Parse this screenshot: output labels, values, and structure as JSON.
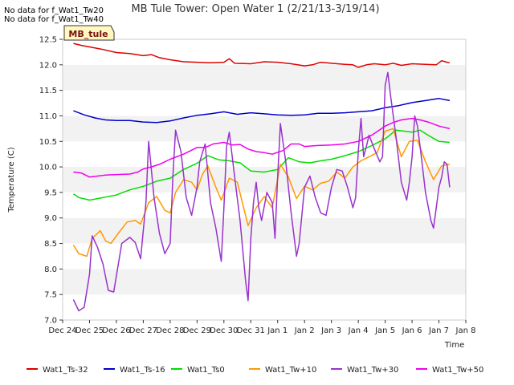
{
  "notes": [
    "No data for f_Wat1_Tw20",
    "No data for f_Wat1_Tw40"
  ],
  "site_label": "MB_tule",
  "chart_data": {
    "type": "line",
    "title": "MB Tule Tower: Open Water 1 (2/21/13-3/19/14)",
    "xlabel": "Time",
    "ylabel": "Temperature (C)",
    "ylim": [
      7.0,
      12.5
    ],
    "xlim": [
      0,
      15
    ],
    "x_ticks": [
      {
        "x": 0,
        "label": "Dec 24"
      },
      {
        "x": 1,
        "label": "Dec 25"
      },
      {
        "x": 2,
        "label": "Dec 26"
      },
      {
        "x": 3,
        "label": "Dec 27"
      },
      {
        "x": 4,
        "label": "Dec 28"
      },
      {
        "x": 5,
        "label": "Dec 29"
      },
      {
        "x": 6,
        "label": "Dec 30"
      },
      {
        "x": 7,
        "label": "Dec 31"
      },
      {
        "x": 8,
        "label": "Jan 1"
      },
      {
        "x": 9,
        "label": "Jan 2"
      },
      {
        "x": 10,
        "label": "Jan 3"
      },
      {
        "x": 11,
        "label": "Jan 4"
      },
      {
        "x": 12,
        "label": "Jan 5"
      },
      {
        "x": 13,
        "label": "Jan 6"
      },
      {
        "x": 14,
        "label": "Jan 7"
      },
      {
        "x": 15,
        "label": "Jan 8"
      }
    ],
    "y_ticks": [
      "7.0",
      "7.5",
      "8.0",
      "8.5",
      "9.0",
      "9.5",
      "10.0",
      "10.5",
      "11.0",
      "11.5",
      "12.0",
      "12.5"
    ],
    "grid": "horizontal bands",
    "legend_placement": "bottom",
    "series": [
      {
        "name": "Wat1_Ts-32",
        "color": "#dd0000",
        "points": [
          [
            0.4,
            12.42
          ],
          [
            0.7,
            12.38
          ],
          [
            1.0,
            12.35
          ],
          [
            1.5,
            12.3
          ],
          [
            2.0,
            12.24
          ],
          [
            2.5,
            12.22
          ],
          [
            3.0,
            12.18
          ],
          [
            3.3,
            12.2
          ],
          [
            3.6,
            12.14
          ],
          [
            4.0,
            12.1
          ],
          [
            4.5,
            12.06
          ],
          [
            5.0,
            12.05
          ],
          [
            5.5,
            12.04
          ],
          [
            6.0,
            12.05
          ],
          [
            6.2,
            12.12
          ],
          [
            6.4,
            12.03
          ],
          [
            7.0,
            12.02
          ],
          [
            7.5,
            12.06
          ],
          [
            8.0,
            12.05
          ],
          [
            8.5,
            12.02
          ],
          [
            9.0,
            11.98
          ],
          [
            9.3,
            12.0
          ],
          [
            9.6,
            12.05
          ],
          [
            10.0,
            12.03
          ],
          [
            10.5,
            12.01
          ],
          [
            10.8,
            12.0
          ],
          [
            11.0,
            11.95
          ],
          [
            11.3,
            12.0
          ],
          [
            11.6,
            12.02
          ],
          [
            12.0,
            12.0
          ],
          [
            12.3,
            12.03
          ],
          [
            12.6,
            11.99
          ],
          [
            13.0,
            12.02
          ],
          [
            13.5,
            12.01
          ],
          [
            13.9,
            12.0
          ],
          [
            14.1,
            12.08
          ],
          [
            14.3,
            12.05
          ],
          [
            14.4,
            12.04
          ]
        ]
      },
      {
        "name": "Wat1_Ts-16",
        "color": "#0000cc",
        "points": [
          [
            0.4,
            11.1
          ],
          [
            0.8,
            11.02
          ],
          [
            1.2,
            10.96
          ],
          [
            1.6,
            10.92
          ],
          [
            2.0,
            10.91
          ],
          [
            2.5,
            10.91
          ],
          [
            3.0,
            10.88
          ],
          [
            3.5,
            10.87
          ],
          [
            4.0,
            10.9
          ],
          [
            4.5,
            10.96
          ],
          [
            5.0,
            11.01
          ],
          [
            5.5,
            11.04
          ],
          [
            6.0,
            11.08
          ],
          [
            6.2,
            11.06
          ],
          [
            6.5,
            11.03
          ],
          [
            7.0,
            11.06
          ],
          [
            7.5,
            11.04
          ],
          [
            8.0,
            11.02
          ],
          [
            8.5,
            11.01
          ],
          [
            9.0,
            11.02
          ],
          [
            9.5,
            11.05
          ],
          [
            10.0,
            11.05
          ],
          [
            10.5,
            11.06
          ],
          [
            11.0,
            11.08
          ],
          [
            11.5,
            11.1
          ],
          [
            12.0,
            11.16
          ],
          [
            12.5,
            11.2
          ],
          [
            13.0,
            11.26
          ],
          [
            13.5,
            11.3
          ],
          [
            14.0,
            11.34
          ],
          [
            14.4,
            11.3
          ]
        ]
      },
      {
        "name": "Wat1_Ts0",
        "color": "#00dd00",
        "points": [
          [
            0.4,
            9.47
          ],
          [
            0.6,
            9.4
          ],
          [
            1.0,
            9.35
          ],
          [
            1.5,
            9.4
          ],
          [
            2.0,
            9.45
          ],
          [
            2.5,
            9.55
          ],
          [
            3.0,
            9.62
          ],
          [
            3.5,
            9.72
          ],
          [
            4.0,
            9.78
          ],
          [
            4.5,
            9.95
          ],
          [
            5.0,
            10.07
          ],
          [
            5.4,
            10.22
          ],
          [
            5.8,
            10.14
          ],
          [
            6.2,
            10.12
          ],
          [
            6.6,
            10.08
          ],
          [
            7.0,
            9.92
          ],
          [
            7.5,
            9.9
          ],
          [
            8.0,
            9.95
          ],
          [
            8.4,
            10.18
          ],
          [
            8.8,
            10.1
          ],
          [
            9.2,
            10.08
          ],
          [
            9.6,
            10.12
          ],
          [
            10.0,
            10.15
          ],
          [
            10.5,
            10.22
          ],
          [
            11.0,
            10.3
          ],
          [
            11.5,
            10.42
          ],
          [
            12.0,
            10.55
          ],
          [
            12.4,
            10.72
          ],
          [
            12.7,
            10.7
          ],
          [
            13.0,
            10.68
          ],
          [
            13.3,
            10.72
          ],
          [
            13.6,
            10.62
          ],
          [
            14.0,
            10.5
          ],
          [
            14.4,
            10.48
          ]
        ]
      },
      {
        "name": "Wat1_Tw+10",
        "color": "#ff9900",
        "points": [
          [
            0.4,
            8.47
          ],
          [
            0.6,
            8.3
          ],
          [
            0.9,
            8.25
          ],
          [
            1.1,
            8.6
          ],
          [
            1.4,
            8.75
          ],
          [
            1.6,
            8.55
          ],
          [
            1.8,
            8.5
          ],
          [
            2.1,
            8.72
          ],
          [
            2.4,
            8.92
          ],
          [
            2.7,
            8.95
          ],
          [
            2.9,
            8.88
          ],
          [
            3.2,
            9.3
          ],
          [
            3.5,
            9.42
          ],
          [
            3.8,
            9.15
          ],
          [
            4.0,
            9.1
          ],
          [
            4.2,
            9.5
          ],
          [
            4.5,
            9.75
          ],
          [
            4.8,
            9.7
          ],
          [
            5.0,
            9.55
          ],
          [
            5.2,
            9.85
          ],
          [
            5.4,
            10.02
          ],
          [
            5.7,
            9.6
          ],
          [
            5.9,
            9.35
          ],
          [
            6.2,
            9.78
          ],
          [
            6.5,
            9.7
          ],
          [
            6.9,
            8.85
          ],
          [
            7.2,
            9.2
          ],
          [
            7.5,
            9.42
          ],
          [
            7.8,
            9.2
          ],
          [
            8.1,
            10.05
          ],
          [
            8.4,
            9.8
          ],
          [
            8.7,
            9.38
          ],
          [
            9.0,
            9.62
          ],
          [
            9.3,
            9.55
          ],
          [
            9.6,
            9.68
          ],
          [
            9.9,
            9.72
          ],
          [
            10.2,
            9.9
          ],
          [
            10.5,
            9.78
          ],
          [
            10.8,
            10.0
          ],
          [
            11.1,
            10.12
          ],
          [
            11.4,
            10.2
          ],
          [
            11.7,
            10.28
          ],
          [
            12.0,
            10.7
          ],
          [
            12.3,
            10.75
          ],
          [
            12.6,
            10.2
          ],
          [
            12.9,
            10.5
          ],
          [
            13.2,
            10.52
          ],
          [
            13.5,
            10.1
          ],
          [
            13.8,
            9.75
          ],
          [
            14.1,
            10.02
          ],
          [
            14.4,
            10.05
          ]
        ]
      },
      {
        "name": "Wat1_Tw+30",
        "color": "#9933cc",
        "points": [
          [
            0.4,
            7.4
          ],
          [
            0.6,
            7.18
          ],
          [
            0.8,
            7.25
          ],
          [
            1.0,
            7.9
          ],
          [
            1.1,
            8.65
          ],
          [
            1.3,
            8.42
          ],
          [
            1.5,
            8.1
          ],
          [
            1.7,
            7.58
          ],
          [
            1.9,
            7.55
          ],
          [
            2.2,
            8.5
          ],
          [
            2.5,
            8.62
          ],
          [
            2.7,
            8.52
          ],
          [
            2.9,
            8.2
          ],
          [
            3.1,
            9.3
          ],
          [
            3.2,
            10.5
          ],
          [
            3.4,
            9.4
          ],
          [
            3.6,
            8.7
          ],
          [
            3.8,
            8.3
          ],
          [
            4.0,
            8.5
          ],
          [
            4.1,
            9.8
          ],
          [
            4.2,
            10.72
          ],
          [
            4.4,
            10.3
          ],
          [
            4.6,
            9.4
          ],
          [
            4.8,
            9.05
          ],
          [
            5.0,
            9.6
          ],
          [
            5.1,
            10.1
          ],
          [
            5.3,
            10.45
          ],
          [
            5.5,
            9.3
          ],
          [
            5.7,
            8.8
          ],
          [
            5.9,
            8.15
          ],
          [
            6.0,
            9.2
          ],
          [
            6.1,
            10.4
          ],
          [
            6.2,
            10.68
          ],
          [
            6.4,
            9.8
          ],
          [
            6.6,
            8.95
          ],
          [
            6.8,
            7.8
          ],
          [
            6.9,
            7.38
          ],
          [
            7.0,
            8.6
          ],
          [
            7.1,
            9.3
          ],
          [
            7.2,
            9.7
          ],
          [
            7.3,
            9.2
          ],
          [
            7.4,
            8.95
          ],
          [
            7.6,
            9.5
          ],
          [
            7.8,
            9.3
          ],
          [
            7.9,
            8.6
          ],
          [
            8.0,
            9.8
          ],
          [
            8.1,
            10.85
          ],
          [
            8.3,
            10.1
          ],
          [
            8.5,
            9.1
          ],
          [
            8.7,
            8.25
          ],
          [
            8.8,
            8.5
          ],
          [
            9.0,
            9.6
          ],
          [
            9.2,
            9.82
          ],
          [
            9.4,
            9.4
          ],
          [
            9.6,
            9.1
          ],
          [
            9.8,
            9.05
          ],
          [
            10.0,
            9.6
          ],
          [
            10.2,
            9.95
          ],
          [
            10.4,
            9.92
          ],
          [
            10.6,
            9.6
          ],
          [
            10.8,
            9.2
          ],
          [
            10.9,
            9.4
          ],
          [
            11.0,
            10.3
          ],
          [
            11.1,
            10.95
          ],
          [
            11.2,
            10.2
          ],
          [
            11.3,
            10.4
          ],
          [
            11.4,
            10.62
          ],
          [
            11.6,
            10.35
          ],
          [
            11.8,
            10.1
          ],
          [
            11.9,
            10.2
          ],
          [
            12.0,
            11.6
          ],
          [
            12.1,
            11.85
          ],
          [
            12.2,
            11.4
          ],
          [
            12.4,
            10.6
          ],
          [
            12.6,
            9.7
          ],
          [
            12.8,
            9.35
          ],
          [
            12.9,
            9.7
          ],
          [
            13.0,
            10.2
          ],
          [
            13.1,
            11.0
          ],
          [
            13.2,
            10.8
          ],
          [
            13.3,
            10.4
          ],
          [
            13.5,
            9.5
          ],
          [
            13.7,
            8.95
          ],
          [
            13.8,
            8.8
          ],
          [
            13.9,
            9.2
          ],
          [
            14.0,
            9.6
          ],
          [
            14.1,
            9.8
          ],
          [
            14.2,
            10.1
          ],
          [
            14.3,
            10.05
          ],
          [
            14.4,
            9.6
          ]
        ]
      },
      {
        "name": "Wat1_Tw+50",
        "color": "#ee00ee",
        "points": [
          [
            0.4,
            9.9
          ],
          [
            0.7,
            9.88
          ],
          [
            1.0,
            9.8
          ],
          [
            1.3,
            9.82
          ],
          [
            1.6,
            9.84
          ],
          [
            2.0,
            9.85
          ],
          [
            2.5,
            9.86
          ],
          [
            2.8,
            9.9
          ],
          [
            3.0,
            9.96
          ],
          [
            3.3,
            10.0
          ],
          [
            3.6,
            10.05
          ],
          [
            4.0,
            10.15
          ],
          [
            4.5,
            10.25
          ],
          [
            5.0,
            10.38
          ],
          [
            5.3,
            10.38
          ],
          [
            5.6,
            10.45
          ],
          [
            6.0,
            10.48
          ],
          [
            6.3,
            10.43
          ],
          [
            6.6,
            10.44
          ],
          [
            6.9,
            10.35
          ],
          [
            7.2,
            10.3
          ],
          [
            7.5,
            10.28
          ],
          [
            7.8,
            10.25
          ],
          [
            8.2,
            10.32
          ],
          [
            8.5,
            10.45
          ],
          [
            8.8,
            10.45
          ],
          [
            9.0,
            10.4
          ],
          [
            9.5,
            10.42
          ],
          [
            10.0,
            10.43
          ],
          [
            10.5,
            10.45
          ],
          [
            11.0,
            10.5
          ],
          [
            11.5,
            10.62
          ],
          [
            12.0,
            10.8
          ],
          [
            12.3,
            10.87
          ],
          [
            12.6,
            10.92
          ],
          [
            13.0,
            10.95
          ],
          [
            13.3,
            10.92
          ],
          [
            13.6,
            10.88
          ],
          [
            14.0,
            10.8
          ],
          [
            14.4,
            10.75
          ]
        ]
      }
    ]
  }
}
